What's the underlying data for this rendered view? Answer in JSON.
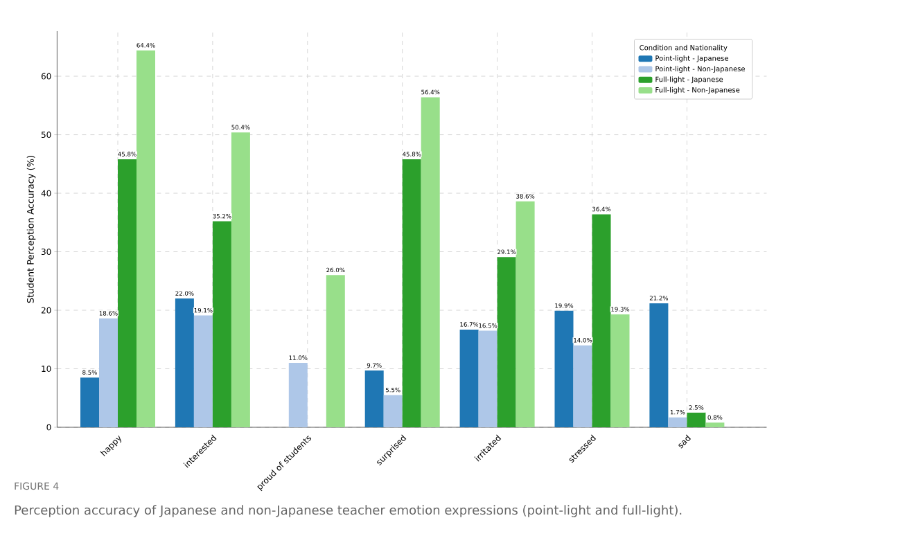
{
  "chart_data": {
    "type": "bar",
    "ylabel": "Student Perception Accuracy (%)",
    "legend_title": "Condition and Nationality",
    "categories": [
      "happy",
      "interested",
      "proud of students",
      "surprised",
      "irritated",
      "stressed",
      "sad"
    ],
    "series": [
      {
        "name": "Point-light - Japanese",
        "color": "#1f77b4",
        "values": [
          8.5,
          22.0,
          null,
          9.7,
          16.7,
          19.9,
          21.2
        ],
        "value_labels": [
          "8.5%",
          "22.0%",
          null,
          "9.7%",
          "16.7%",
          "19.9%",
          "21.2%"
        ]
      },
      {
        "name": "Point-light - Non-Japanese",
        "color": "#aec7e8",
        "values": [
          18.6,
          19.1,
          11.0,
          5.5,
          16.5,
          14.0,
          1.7
        ],
        "value_labels": [
          "18.6%",
          "19.1%",
          "11.0%",
          "5.5%",
          "16.5%",
          "14.0%",
          "1.7%"
        ]
      },
      {
        "name": "Full-light - Japanese",
        "color": "#2ca02c",
        "values": [
          45.8,
          35.2,
          null,
          45.8,
          29.1,
          36.4,
          2.5
        ],
        "value_labels": [
          "45.8%",
          "35.2%",
          null,
          "45.8%",
          "29.1%",
          "36.4%",
          "2.5%"
        ]
      },
      {
        "name": "Full-light - Non-Japanese",
        "color": "#98df8a",
        "values": [
          64.4,
          50.4,
          26.0,
          56.4,
          38.6,
          19.3,
          0.8
        ],
        "value_labels": [
          "64.4%",
          "50.4%",
          "26.0%",
          "56.4%",
          "38.6%",
          "19.3%",
          "0.8%"
        ]
      }
    ],
    "ylim": [
      0,
      67.7
    ],
    "yticks": [
      0,
      10,
      20,
      30,
      40,
      50,
      60
    ],
    "grid": true,
    "legend": "top right",
    "annotations": [
      "FIGURE 4",
      "Perception accuracy of Japanese and non-Japanese teacher emotion expressions (point-light and full-light)."
    ]
  }
}
